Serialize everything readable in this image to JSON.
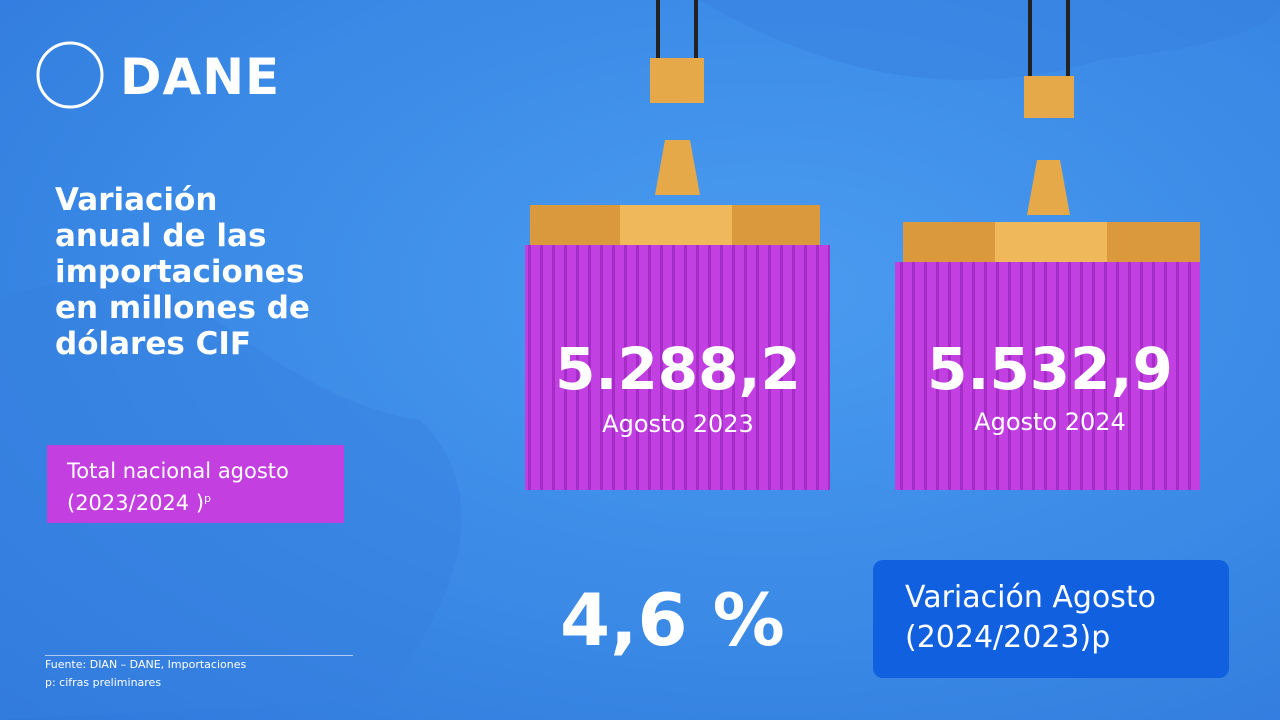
{
  "logo": {
    "text": "DANE"
  },
  "title": {
    "lines": [
      "Variación",
      "anual de las",
      "importaciones",
      "en millones de",
      "dólares CIF"
    ]
  },
  "badge": {
    "text": "Total nacional agosto (2023/2024 )",
    "superscript": "p"
  },
  "containers": [
    {
      "value": "5.288,2",
      "label": "Agosto 2023"
    },
    {
      "value": "5.532,9",
      "label": "Agosto 2024"
    }
  ],
  "variation": {
    "value": "4,6 %",
    "label": "Variación Agosto (2024/2023)p"
  },
  "footer": {
    "source": "Fuente: DIAN – DANE, Importaciones",
    "note": "p: cifras preliminares"
  }
}
